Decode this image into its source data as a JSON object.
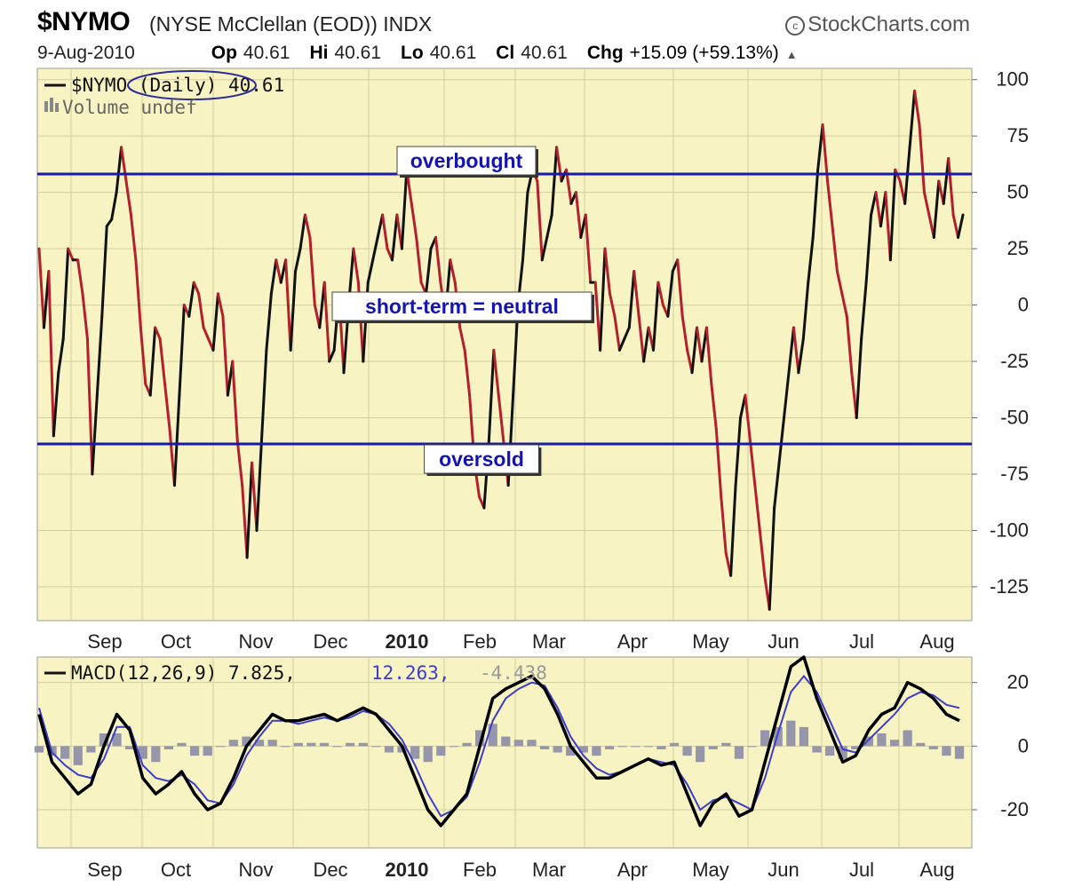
{
  "header": {
    "symbol": "$NYMO",
    "description": "(NYSE McClellan (EOD)) INDX",
    "brand": "StockCharts.com",
    "date": "9-Aug-2010",
    "open_label": "Op",
    "open": "40.61",
    "high_label": "Hi",
    "high": "40.61",
    "low_label": "Lo",
    "low": "40.61",
    "close_label": "Cl",
    "close": "40.61",
    "change_label": "Chg",
    "change": "+15.09 (+59.13%)"
  },
  "colors": {
    "plot_bg": "#f7f3c2",
    "down_line": "#b3202c",
    "up_line": "#111111",
    "level_line": "#1a1aa6",
    "macd_line": "#000000",
    "signal_line": "#3d3dcc",
    "histogram": "#9696aa"
  },
  "chart_data": [
    {
      "type": "line",
      "title": "$NYMO (Daily) 40.61",
      "legend": [
        "$NYMO (Daily) 40.61",
        "Volume undef"
      ],
      "legend_placement": "top-left",
      "x_ticks": [
        "Sep",
        "Oct",
        "Nov",
        "Dec",
        "2010",
        "Feb",
        "Mar",
        "Apr",
        "May",
        "Jun",
        "Jul",
        "Aug"
      ],
      "y_ticks": [
        100,
        75,
        50,
        25,
        0,
        -25,
        -50,
        -75,
        -100,
        -125
      ],
      "ylim": [
        -140,
        105
      ],
      "grid": true,
      "series": [
        {
          "name": "$NYMO (Daily)",
          "values": [
            25,
            -10,
            15,
            -58,
            -30,
            -15,
            25,
            20,
            20,
            5,
            -15,
            -75,
            -40,
            -5,
            35,
            38,
            50,
            70,
            55,
            40,
            20,
            -10,
            -35,
            -40,
            -10,
            -15,
            -35,
            -55,
            -80,
            -40,
            0,
            -5,
            10,
            5,
            -10,
            -15,
            -20,
            5,
            -5,
            -40,
            -25,
            -60,
            -80,
            -112,
            -70,
            -100,
            -60,
            -20,
            5,
            20,
            10,
            20,
            -20,
            15,
            25,
            40,
            30,
            0,
            -10,
            10,
            -25,
            -20,
            5,
            -30,
            0,
            25,
            10,
            -25,
            10,
            20,
            30,
            40,
            25,
            20,
            40,
            25,
            60,
            45,
            30,
            10,
            5,
            25,
            30,
            10,
            -5,
            20,
            10,
            -10,
            -20,
            -40,
            -70,
            -85,
            -90,
            -60,
            -20,
            -40,
            -60,
            -80,
            -40,
            0,
            20,
            50,
            60,
            55,
            20,
            30,
            40,
            70,
            55,
            60,
            45,
            50,
            30,
            40,
            10,
            10,
            -20,
            25,
            5,
            -5,
            -20,
            -15,
            -10,
            15,
            -5,
            -25,
            -10,
            -20,
            10,
            0,
            -5,
            15,
            20,
            -5,
            -20,
            -30,
            -10,
            -25,
            -10,
            -35,
            -55,
            -85,
            -110,
            -120,
            -80,
            -50,
            -40,
            -60,
            -80,
            -100,
            -120,
            -135,
            -90,
            -70,
            -50,
            -30,
            -10,
            -30,
            -15,
            10,
            30,
            60,
            80,
            55,
            35,
            15,
            5,
            -5,
            -30,
            -50,
            -15,
            10,
            40,
            50,
            35,
            50,
            20,
            60,
            55,
            45,
            70,
            95,
            80,
            50,
            40,
            30,
            55,
            45,
            65,
            40,
            30,
            40
          ]
        }
      ],
      "reference_lines": [
        {
          "label": "overbought",
          "y": 56
        },
        {
          "label": "short-term = neutral",
          "y": 0
        },
        {
          "label": "oversold",
          "y": -65
        }
      ]
    },
    {
      "type": "line",
      "title": "MACD(12,26,9) 7.825, 12.263, -4.438",
      "legend": [
        "MACD(12,26,9) 7.825",
        "12.263",
        "-4.438"
      ],
      "legend_placement": "top-left",
      "x_ticks": [
        "Sep",
        "Oct",
        "Nov",
        "Dec",
        "2010",
        "Feb",
        "Mar",
        "Apr",
        "May",
        "Jun",
        "Jul",
        "Aug"
      ],
      "y_ticks": [
        20,
        0,
        -20
      ],
      "ylim": [
        -32,
        28
      ],
      "grid": true,
      "series": [
        {
          "name": "MACD(12,26,9)",
          "values": [
            10,
            -5,
            -10,
            -15,
            -12,
            0,
            10,
            5,
            -10,
            -15,
            -12,
            -8,
            -15,
            -20,
            -18,
            -10,
            0,
            5,
            10,
            8,
            8,
            9,
            10,
            8,
            10,
            12,
            10,
            5,
            0,
            -10,
            -20,
            -25,
            -20,
            -15,
            0,
            15,
            18,
            20,
            22,
            18,
            10,
            0,
            -5,
            -10,
            -10,
            -8,
            -6,
            -4,
            -6,
            -5,
            -15,
            -25,
            -18,
            -15,
            -22,
            -20,
            -5,
            10,
            25,
            28,
            15,
            5,
            -5,
            -3,
            5,
            10,
            12,
            20,
            18,
            15,
            10,
            8
          ]
        },
        {
          "name": "Signal",
          "values": [
            12,
            -2,
            -6,
            -9,
            -10,
            -4,
            6,
            6,
            -6,
            -10,
            -11,
            -9,
            -12,
            -17,
            -18,
            -12,
            -3,
            3,
            8,
            8,
            7,
            8,
            9,
            8,
            9,
            11,
            10,
            7,
            2,
            -6,
            -15,
            -22,
            -20,
            -16,
            -5,
            8,
            15,
            18,
            20,
            19,
            12,
            3,
            -3,
            -7,
            -9,
            -8,
            -6,
            -4,
            -5,
            -6,
            -12,
            -20,
            -17,
            -16,
            -18,
            -20,
            -10,
            4,
            17,
            22,
            17,
            8,
            -1,
            -2,
            2,
            6,
            10,
            15,
            17,
            16,
            13,
            12
          ]
        },
        {
          "name": "Histogram",
          "values": [
            -2,
            -3,
            -4,
            -6,
            -2,
            4,
            4,
            -1,
            -4,
            -5,
            -1,
            1,
            -3,
            -3,
            0,
            2,
            3,
            2,
            2,
            0,
            1,
            1,
            1,
            0,
            1,
            1,
            0,
            -2,
            -2,
            -4,
            -5,
            -3,
            0,
            1,
            5,
            7,
            3,
            2,
            2,
            -1,
            -2,
            -3,
            -2,
            -3,
            -1,
            0,
            0,
            0,
            -1,
            1,
            -3,
            -5,
            -1,
            1,
            -4,
            0,
            5,
            6,
            8,
            6,
            -2,
            -3,
            -4,
            -1,
            3,
            4,
            2,
            5,
            1,
            -1,
            -3,
            -4
          ]
        }
      ]
    }
  ],
  "texts": {
    "nymo_legend": "$NYMO (Daily) 40.61",
    "volume_legend": "Volume undef",
    "macd_legend_1": "MACD(12,26,9) 7.825,",
    "macd_legend_2": "12.263,",
    "macd_legend_3": "-4.438"
  }
}
